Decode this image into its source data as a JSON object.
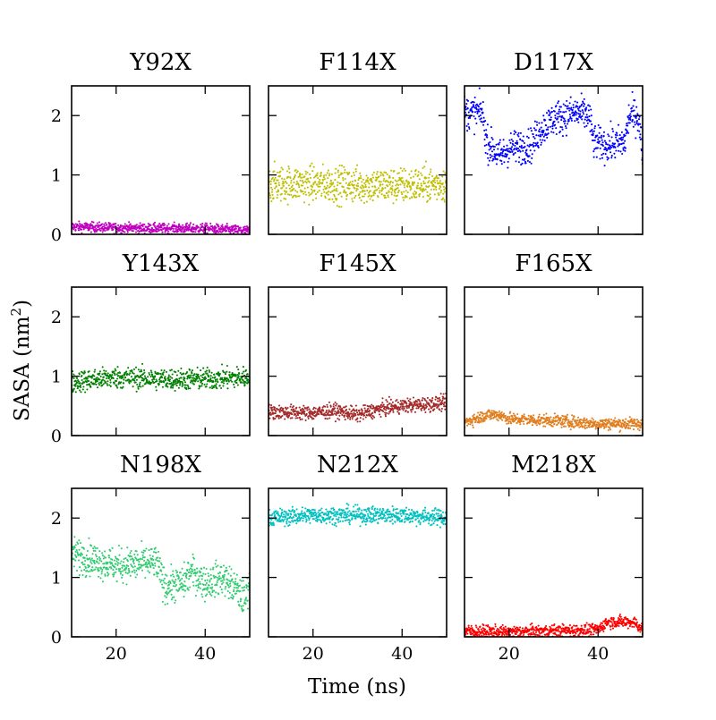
{
  "chart_data": {
    "type": "scatter",
    "xlabel": "Time (ns)",
    "ylabel_text": "SASA (nm",
    "ylabel_sup": "2",
    "ylabel_close": ")",
    "xlim": [
      10,
      50
    ],
    "ylim": [
      0,
      2.5
    ],
    "xticks": [
      20,
      40
    ],
    "yticks": [
      0,
      1,
      2
    ],
    "grid": false,
    "panels": [
      {
        "title": "Y92X",
        "color": "#c000c0",
        "series": [
          {
            "x": 10,
            "y": 0.13
          },
          {
            "x": 20,
            "y": 0.11
          },
          {
            "x": 30,
            "y": 0.1
          },
          {
            "x": 40,
            "y": 0.1
          },
          {
            "x": 50,
            "y": 0.06
          }
        ],
        "spread": 0.04
      },
      {
        "title": "F114X",
        "color": "#bfbf00",
        "series": [
          {
            "x": 10,
            "y": 0.85
          },
          {
            "x": 20,
            "y": 0.85
          },
          {
            "x": 30,
            "y": 0.83
          },
          {
            "x": 40,
            "y": 0.82
          },
          {
            "x": 50,
            "y": 0.85
          }
        ],
        "spread": 0.15
      },
      {
        "title": "D117X",
        "color": "#0000ff",
        "series": [
          {
            "x": 10,
            "y": 2.05
          },
          {
            "x": 14,
            "y": 2.05
          },
          {
            "x": 15,
            "y": 1.55
          },
          {
            "x": 18,
            "y": 1.3
          },
          {
            "x": 20,
            "y": 1.45
          },
          {
            "x": 25,
            "y": 1.5
          },
          {
            "x": 27,
            "y": 1.75
          },
          {
            "x": 30,
            "y": 1.95
          },
          {
            "x": 35,
            "y": 2.05
          },
          {
            "x": 38,
            "y": 2.0
          },
          {
            "x": 39,
            "y": 1.55
          },
          {
            "x": 42,
            "y": 1.5
          },
          {
            "x": 46,
            "y": 1.55
          },
          {
            "x": 47,
            "y": 2.0
          },
          {
            "x": 49,
            "y": 2.0
          },
          {
            "x": 50,
            "y": 1.35
          }
        ],
        "spread": 0.14
      },
      {
        "title": "Y143X",
        "color": "#008000",
        "series": [
          {
            "x": 10,
            "y": 0.9
          },
          {
            "x": 20,
            "y": 0.98
          },
          {
            "x": 30,
            "y": 0.95
          },
          {
            "x": 40,
            "y": 0.95
          },
          {
            "x": 50,
            "y": 0.98
          }
        ],
        "spread": 0.09
      },
      {
        "title": "F145X",
        "color": "#a52a2a",
        "series": [
          {
            "x": 10,
            "y": 0.4
          },
          {
            "x": 20,
            "y": 0.38
          },
          {
            "x": 25,
            "y": 0.42
          },
          {
            "x": 30,
            "y": 0.35
          },
          {
            "x": 35,
            "y": 0.45
          },
          {
            "x": 40,
            "y": 0.5
          },
          {
            "x": 50,
            "y": 0.55
          }
        ],
        "spread": 0.06
      },
      {
        "title": "F165X",
        "color": "#e07f20",
        "series": [
          {
            "x": 10,
            "y": 0.22
          },
          {
            "x": 15,
            "y": 0.35
          },
          {
            "x": 18,
            "y": 0.35
          },
          {
            "x": 20,
            "y": 0.28
          },
          {
            "x": 30,
            "y": 0.25
          },
          {
            "x": 40,
            "y": 0.2
          },
          {
            "x": 50,
            "y": 0.2
          }
        ],
        "spread": 0.05
      },
      {
        "title": "N198X",
        "color": "#30cc70",
        "series": [
          {
            "x": 10,
            "y": 1.4
          },
          {
            "x": 15,
            "y": 1.3
          },
          {
            "x": 20,
            "y": 1.2
          },
          {
            "x": 29,
            "y": 1.25
          },
          {
            "x": 31,
            "y": 0.85
          },
          {
            "x": 35,
            "y": 0.9
          },
          {
            "x": 37,
            "y": 1.1
          },
          {
            "x": 40,
            "y": 0.9
          },
          {
            "x": 44,
            "y": 1.0
          },
          {
            "x": 47,
            "y": 0.8
          },
          {
            "x": 49,
            "y": 0.6
          },
          {
            "x": 50,
            "y": 1.0
          }
        ],
        "spread": 0.14
      },
      {
        "title": "N212X",
        "color": "#00c0c0",
        "series": [
          {
            "x": 10,
            "y": 2.0
          },
          {
            "x": 20,
            "y": 2.05
          },
          {
            "x": 30,
            "y": 2.05
          },
          {
            "x": 40,
            "y": 2.05
          },
          {
            "x": 50,
            "y": 2.0
          }
        ],
        "spread": 0.07
      },
      {
        "title": "M218X",
        "color": "#ff0000",
        "series": [
          {
            "x": 10,
            "y": 0.1
          },
          {
            "x": 20,
            "y": 0.08
          },
          {
            "x": 30,
            "y": 0.1
          },
          {
            "x": 40,
            "y": 0.12
          },
          {
            "x": 42,
            "y": 0.25
          },
          {
            "x": 48,
            "y": 0.25
          },
          {
            "x": 50,
            "y": 0.12
          }
        ],
        "spread": 0.05
      }
    ]
  }
}
